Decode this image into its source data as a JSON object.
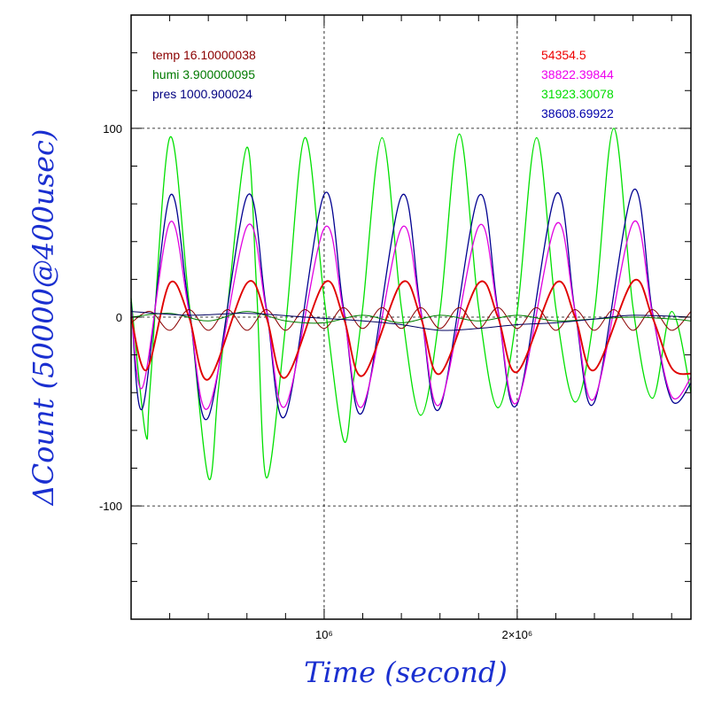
{
  "chart_data": {
    "type": "line",
    "xlabel": "Time (second)",
    "ylabel": "ΔCount (50000@400usec)",
    "xlim": [
      0,
      2900000
    ],
    "ylim": [
      -160,
      160
    ],
    "y_ticks": [
      -100,
      0,
      100
    ],
    "y_tick_labels": [
      "-100",
      "0",
      "100"
    ],
    "x_ticks": [
      1000000,
      2000000
    ],
    "x_tick_labels": [
      "10⁶",
      "2×10⁶"
    ],
    "grid": true,
    "legend_left": [
      {
        "text": "temp 16.10000038",
        "color": "#8b0000"
      },
      {
        "text": "humi 3.900000095",
        "color": "#007a00"
      },
      {
        "text": "pres 1000.900024",
        "color": "#000080"
      }
    ],
    "legend_right": [
      {
        "text": "54354.5",
        "color": "#ee0000"
      },
      {
        "text": "38822.39844",
        "color": "#ee00ee"
      },
      {
        "text": "31923.30078",
        "color": "#00dd00"
      },
      {
        "text": "38608.69922",
        "color": "#0000aa"
      }
    ],
    "series": [
      {
        "color": "#00e000",
        "width": 1.3,
        "x": [
          0,
          75000,
          100000,
          200000,
          300000,
          400000,
          450000,
          500000,
          600000,
          650000,
          700000,
          800000,
          900000,
          1000000,
          1100000,
          1150000,
          1200000,
          1300000,
          1400000,
          1500000,
          1600000,
          1700000,
          1800000,
          1900000,
          2000000,
          2100000,
          2200000,
          2300000,
          2400000,
          2500000,
          2600000,
          2700000,
          2800000,
          2900000
        ],
        "y": [
          10,
          -62,
          -35,
          95,
          8,
          -85,
          -40,
          6,
          90,
          15,
          -85,
          -5,
          95,
          10,
          -65,
          -35,
          5,
          95,
          5,
          -52,
          3,
          97,
          5,
          -48,
          3,
          95,
          5,
          -45,
          2,
          100,
          5,
          -43,
          3,
          -40
        ]
      },
      {
        "color": "#000090",
        "width": 1.3,
        "x": [
          0,
          60000,
          200000,
          300000,
          400000,
          600000,
          700000,
          800000,
          1000000,
          1100000,
          1200000,
          1400000,
          1500000,
          1600000,
          1800000,
          1900000,
          2000000,
          2200000,
          2300000,
          2400000,
          2600000,
          2700000,
          2800000,
          2900000
        ],
        "y": [
          8,
          -48,
          64,
          5,
          -53,
          64,
          5,
          -52,
          65,
          5,
          -50,
          64,
          4,
          -48,
          64,
          4,
          -46,
          65,
          3,
          -45,
          67,
          3,
          -44,
          -35
        ]
      },
      {
        "color": "#e000e0",
        "width": 1.3,
        "x": [
          0,
          60000,
          200000,
          300000,
          400000,
          600000,
          700000,
          800000,
          1000000,
          1100000,
          1200000,
          1400000,
          1500000,
          1600000,
          1800000,
          1900000,
          2000000,
          2200000,
          2300000,
          2400000,
          2600000,
          2700000,
          2800000,
          2900000
        ],
        "y": [
          5,
          -37,
          50,
          3,
          -48,
          48,
          4,
          -47,
          47,
          3,
          -47,
          47,
          3,
          -46,
          48,
          3,
          -45,
          49,
          3,
          -43,
          50,
          2,
          -42,
          -32
        ]
      },
      {
        "color": "#e00000",
        "width": 1.9,
        "x": [
          0,
          80000,
          200000,
          300000,
          400000,
          600000,
          700000,
          800000,
          1000000,
          1100000,
          1200000,
          1400000,
          1500000,
          1600000,
          1800000,
          1900000,
          2000000,
          2200000,
          2300000,
          2400000,
          2600000,
          2700000,
          2800000,
          2900000
        ],
        "y": [
          0,
          -28,
          18,
          0,
          -33,
          18,
          0,
          -32,
          18,
          0,
          -31,
          18,
          0,
          -30,
          18,
          0,
          -29,
          18,
          0,
          -28,
          19,
          0,
          -27,
          -30
        ]
      },
      {
        "color": "#8b0000",
        "width": 1.0,
        "x": [
          0,
          100000,
          200000,
          300000,
          400000,
          500000,
          600000,
          700000,
          800000,
          900000,
          1000000,
          1100000,
          1200000,
          1300000,
          1400000,
          1500000,
          1600000,
          1700000,
          1800000,
          1900000,
          2000000,
          2100000,
          2200000,
          2300000,
          2400000,
          2500000,
          2600000,
          2700000,
          2800000,
          2900000
        ],
        "y": [
          -3,
          3,
          -7,
          4,
          -7,
          4,
          -7,
          4,
          -7,
          4,
          -6,
          5,
          -6,
          5,
          -6,
          5,
          -6,
          5,
          -6,
          5,
          -6,
          5,
          -7,
          4,
          -7,
          4,
          -7,
          4,
          -7,
          3
        ]
      },
      {
        "color": "#008000",
        "width": 1.0,
        "x": [
          0,
          200000,
          400000,
          600000,
          800000,
          1000000,
          1200000,
          1400000,
          1600000,
          1800000,
          2000000,
          2200000,
          2400000,
          2600000,
          2800000,
          2900000
        ],
        "y": [
          0,
          2,
          -2,
          3,
          -2,
          -3,
          1,
          -3,
          1,
          -2,
          1,
          -2,
          -1,
          0,
          -1,
          -2
        ]
      },
      {
        "color": "#000060",
        "width": 1.0,
        "x": [
          0,
          300000,
          600000,
          900000,
          1200000,
          1400000,
          1600000,
          1800000,
          2000000,
          2200000,
          2400000,
          2600000,
          2900000
        ],
        "y": [
          3,
          1,
          2,
          0,
          -2,
          -4,
          -7,
          -6,
          -4,
          -3,
          -1,
          1,
          0
        ]
      }
    ]
  }
}
